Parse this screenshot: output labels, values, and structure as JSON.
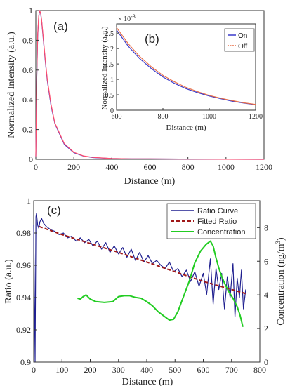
{
  "chart_data": [
    {
      "id": "a",
      "panel_label": "(a)",
      "type": "line",
      "xlabel": "Distance (m)",
      "ylabel": "Normalized Intensity (a.u.)",
      "xlim": [
        0,
        1200
      ],
      "ylim": [
        0,
        1
      ],
      "xticks": [
        0,
        200,
        400,
        600,
        800,
        1000,
        1200
      ],
      "yticks": [
        0,
        0.2,
        0.4,
        0.6,
        0.8,
        1
      ],
      "ytick_labels": [
        "0",
        "0.2",
        "0.4",
        "0.6",
        "0.8",
        "1"
      ],
      "grid": false,
      "series": [
        {
          "color": "#3a3acb",
          "x": [
            0,
            5,
            10,
            15,
            20,
            25,
            30,
            40,
            50,
            60,
            80,
            100,
            150,
            200,
            250,
            300,
            400,
            500,
            600,
            800,
            1000,
            1200
          ],
          "y": [
            0.02,
            0.55,
            0.83,
            0.95,
            1.0,
            0.98,
            0.94,
            0.8,
            0.66,
            0.53,
            0.36,
            0.24,
            0.1,
            0.045,
            0.022,
            0.012,
            0.005,
            0.003,
            0.0027,
            0.0012,
            0.0006,
            0.0002
          ]
        },
        {
          "color": "#ff4d6d",
          "x": [
            0,
            5,
            10,
            15,
            20,
            25,
            30,
            40,
            50,
            60,
            80,
            100,
            150,
            200,
            250,
            300,
            400,
            500,
            600,
            800,
            1000,
            1200
          ],
          "y": [
            0.02,
            0.56,
            0.84,
            0.96,
            1.0,
            0.985,
            0.945,
            0.81,
            0.67,
            0.54,
            0.37,
            0.245,
            0.105,
            0.047,
            0.023,
            0.013,
            0.005,
            0.003,
            0.0027,
            0.0012,
            0.0006,
            0.0002
          ]
        }
      ]
    },
    {
      "id": "b",
      "panel_label": "(b)",
      "type": "line",
      "xlabel": "Distance (m)",
      "ylabel": "Normalized Intensity (a.u.)",
      "y_multiplier": "× 10",
      "y_multiplier_exp": "-3",
      "xlim": [
        600,
        1200
      ],
      "ylim": [
        0,
        2.8
      ],
      "xticks": [
        600,
        800,
        1000,
        1200
      ],
      "yticks": [
        0,
        0.5,
        1,
        1.5,
        2,
        2.5
      ],
      "ytick_labels": [
        "0",
        "0.5",
        "1",
        "1.5",
        "2",
        "2.5"
      ],
      "legend_position": "top-right",
      "series": [
        {
          "name": "On",
          "color": "#3a3acb",
          "x": [
            600,
            650,
            700,
            750,
            800,
            850,
            900,
            950,
            1000,
            1050,
            1100,
            1150,
            1200
          ],
          "y": [
            2.6,
            2.08,
            1.67,
            1.35,
            1.08,
            0.87,
            0.7,
            0.57,
            0.46,
            0.37,
            0.29,
            0.23,
            0.18
          ]
        },
        {
          "name": "Off",
          "color": "#e8704a",
          "x": [
            600,
            650,
            700,
            750,
            800,
            850,
            900,
            950,
            1000,
            1050,
            1100,
            1150,
            1200
          ],
          "y": [
            2.68,
            2.16,
            1.74,
            1.41,
            1.13,
            0.92,
            0.74,
            0.6,
            0.48,
            0.39,
            0.31,
            0.24,
            0.19
          ]
        }
      ]
    },
    {
      "id": "c",
      "panel_label": "(c)",
      "type": "line",
      "xlabel": "Distance (m)",
      "ylabel": "Ratio (a.u.)",
      "ylabel_right": "Concentration (ng/m",
      "ylabel_right_sup": "3",
      "ylabel_right_end": ")",
      "xlim": [
        0,
        800
      ],
      "ylim": [
        0.9,
        1
      ],
      "ylim_right": [
        0,
        9.6
      ],
      "xticks": [
        0,
        100,
        200,
        300,
        400,
        500,
        600,
        700,
        800
      ],
      "yticks": [
        0.9,
        0.92,
        0.94,
        0.96,
        0.98,
        1
      ],
      "ytick_labels": [
        "0.9",
        "0.92",
        "0.94",
        "0.96",
        "0.98",
        "1"
      ],
      "yticks_right": [
        0,
        2,
        4,
        6,
        8
      ],
      "legend_position": "top-right",
      "series": [
        {
          "name": "Ratio Curve",
          "color": "#1f1f8f",
          "axis": "left",
          "x": [
            0,
            5,
            8,
            10,
            14,
            18,
            22,
            28,
            35,
            45,
            60,
            75,
            90,
            105,
            120,
            135,
            150,
            165,
            180,
            195,
            210,
            225,
            240,
            255,
            270,
            285,
            300,
            315,
            330,
            345,
            360,
            375,
            390,
            405,
            420,
            435,
            450,
            465,
            480,
            495,
            510,
            525,
            540,
            555,
            570,
            585,
            600,
            612,
            625,
            635,
            645,
            655,
            665,
            675,
            685,
            695,
            705,
            712,
            720,
            728,
            735,
            742,
            750
          ],
          "y": [
            0.985,
            0.9,
            0.99,
            0.992,
            0.985,
            0.983,
            0.987,
            0.989,
            0.986,
            0.984,
            0.982,
            0.981,
            0.979,
            0.98,
            0.977,
            0.978,
            0.975,
            0.977,
            0.974,
            0.976,
            0.972,
            0.975,
            0.97,
            0.974,
            0.968,
            0.972,
            0.967,
            0.971,
            0.965,
            0.97,
            0.963,
            0.968,
            0.962,
            0.966,
            0.961,
            0.963,
            0.96,
            0.958,
            0.962,
            0.956,
            0.958,
            0.953,
            0.957,
            0.95,
            0.956,
            0.947,
            0.955,
            0.942,
            0.964,
            0.936,
            0.958,
            0.945,
            0.955,
            0.933,
            0.953,
            0.94,
            0.961,
            0.928,
            0.952,
            0.94,
            0.957,
            0.933,
            0.945
          ]
        },
        {
          "name": "Fitted Ratio",
          "color": "#a01818",
          "dash": true,
          "axis": "left",
          "x": [
            20,
            100,
            200,
            300,
            400,
            500,
            600,
            700,
            750
          ],
          "y": [
            0.984,
            0.979,
            0.9735,
            0.968,
            0.962,
            0.956,
            0.95,
            0.945,
            0.9425
          ]
        },
        {
          "name": "Concentration",
          "color": "#22cc22",
          "axis": "right",
          "x": [
            155,
            165,
            175,
            185,
            200,
            220,
            250,
            280,
            300,
            320,
            340,
            360,
            380,
            400,
            420,
            440,
            460,
            480,
            495,
            510,
            530,
            550,
            570,
            590,
            610,
            625,
            635,
            645,
            655,
            665,
            675,
            690,
            705,
            720,
            730,
            740
          ],
          "y": [
            3.8,
            3.75,
            3.9,
            4.0,
            3.75,
            3.6,
            3.55,
            3.6,
            3.9,
            3.95,
            3.95,
            3.85,
            3.8,
            3.6,
            3.35,
            3.0,
            2.75,
            2.5,
            2.55,
            3.0,
            3.9,
            4.8,
            5.9,
            6.6,
            7.0,
            7.2,
            6.9,
            6.2,
            5.6,
            5.1,
            4.7,
            4.2,
            3.8,
            3.3,
            2.8,
            2.1
          ]
        }
      ]
    }
  ]
}
